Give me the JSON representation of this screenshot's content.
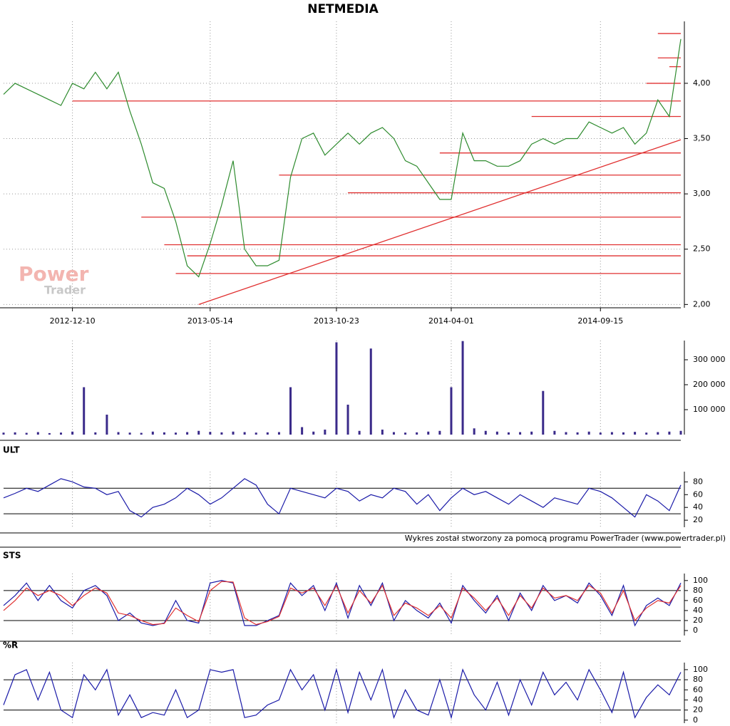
{
  "chart_data": [
    {
      "type": "line",
      "title": "NETMEDIA",
      "categories": [
        null,
        null,
        null,
        null,
        null,
        null,
        "2012-12-10",
        null,
        null,
        null,
        null,
        null,
        null,
        null,
        null,
        null,
        null,
        null,
        "2013-05-14",
        null,
        null,
        null,
        null,
        null,
        null,
        null,
        null,
        null,
        null,
        "2013-10-23",
        null,
        null,
        null,
        null,
        null,
        null,
        null,
        null,
        null,
        "2014-04-01",
        null,
        null,
        null,
        null,
        null,
        null,
        null,
        null,
        null,
        null,
        null,
        null,
        "2014-09-15",
        null,
        null,
        null,
        null,
        null,
        null,
        null
      ],
      "series": [
        {
          "color": "#2e8b2e",
          "values": [
            3.9,
            4.0,
            3.95,
            3.9,
            3.85,
            3.8,
            4.0,
            3.95,
            4.1,
            3.95,
            4.1,
            3.75,
            3.45,
            3.1,
            3.05,
            2.75,
            2.35,
            2.25,
            2.55,
            2.9,
            3.3,
            2.5,
            2.35,
            2.35,
            2.4,
            3.15,
            3.5,
            3.55,
            3.35,
            3.45,
            3.55,
            3.45,
            3.55,
            3.6,
            3.5,
            3.3,
            3.25,
            3.1,
            2.95,
            2.95,
            3.55,
            3.3,
            3.3,
            3.25,
            3.25,
            3.3,
            3.45,
            3.5,
            3.45,
            3.5,
            3.5,
            3.65,
            3.6,
            3.55,
            3.6,
            3.45,
            3.55,
            3.85,
            3.7,
            4.4
          ]
        }
      ],
      "ylim": [
        1.97,
        4.56
      ],
      "yticks": [
        {
          "value": 2,
          "label": "2,00"
        },
        {
          "value": 2.5,
          "label": "2,50"
        },
        {
          "value": 3,
          "label": "3,00"
        },
        {
          "value": 3.5,
          "label": "3,50"
        },
        {
          "value": 4,
          "label": "4,00"
        }
      ],
      "grid": true,
      "level_color": "#e03030",
      "hlines": [
        {
          "start": 6,
          "value": 3.84
        },
        {
          "start": 46,
          "value": 3.7
        },
        {
          "start": 38,
          "value": 3.37
        },
        {
          "start": 24,
          "value": 3.17
        },
        {
          "start": 30,
          "value": 3.01
        },
        {
          "start": 12,
          "value": 2.79
        },
        {
          "start": 14,
          "value": 2.54
        },
        {
          "start": 16,
          "value": 2.44
        },
        {
          "start": 15,
          "value": 2.28
        },
        {
          "start": 56,
          "value": 4.0
        },
        {
          "start": 58,
          "value": 4.15
        },
        {
          "start": 57,
          "value": 4.23
        },
        {
          "start": 57,
          "value": 4.45
        }
      ],
      "trendline": {
        "from": {
          "index": 17,
          "value": 2.0
        },
        "to": {
          "index": 59,
          "value": 3.49
        }
      },
      "watermark": [
        "Power",
        "Trader"
      ]
    },
    {
      "type": "bar",
      "color": "#3a2a8a",
      "values": [
        8000,
        9000,
        7000,
        10000,
        6000,
        8000,
        12000,
        190000,
        9000,
        80000,
        10000,
        8000,
        7000,
        12000,
        9000,
        8000,
        10000,
        15000,
        11000,
        9000,
        12000,
        10000,
        8000,
        9000,
        10000,
        190000,
        30000,
        12000,
        20000,
        370000,
        120000,
        15000,
        345000,
        20000,
        10000,
        8000,
        9000,
        12000,
        15000,
        190000,
        375000,
        25000,
        15000,
        12000,
        9000,
        10000,
        12000,
        175000,
        15000,
        10000,
        9000,
        12000,
        8000,
        10000,
        9000,
        11000,
        8000,
        10000,
        12000,
        15000
      ],
      "ylim": [
        0,
        377000
      ],
      "yticks": [
        {
          "value": 100000,
          "label": "100 000"
        },
        {
          "value": 200000,
          "label": "200 000"
        },
        {
          "value": 300000,
          "label": "300 000"
        }
      ]
    },
    {
      "type": "line",
      "title": "ULT",
      "series": [
        {
          "color": "#1a1aa8",
          "values": [
            55,
            62,
            70,
            65,
            75,
            85,
            80,
            72,
            70,
            60,
            65,
            35,
            25,
            40,
            45,
            55,
            70,
            60,
            45,
            55,
            70,
            85,
            75,
            45,
            30,
            70,
            65,
            60,
            55,
            70,
            65,
            50,
            60,
            55,
            70,
            65,
            45,
            60,
            35,
            55,
            70,
            60,
            65,
            55,
            45,
            60,
            50,
            40,
            55,
            50,
            45,
            70,
            65,
            55,
            40,
            25,
            60,
            50,
            35,
            75
          ]
        }
      ],
      "ylim": [
        9,
        96
      ],
      "yticks": [
        20,
        40,
        60,
        80
      ],
      "levels": [
        30,
        70
      ]
    },
    {
      "type": "line",
      "title": "STS",
      "series": [
        {
          "color": "#1a1aa8",
          "values": [
            50,
            70,
            95,
            60,
            90,
            60,
            45,
            80,
            90,
            70,
            20,
            35,
            15,
            10,
            15,
            60,
            20,
            15,
            95,
            100,
            95,
            10,
            10,
            20,
            30,
            95,
            70,
            90,
            40,
            95,
            25,
            90,
            50,
            95,
            20,
            60,
            40,
            25,
            55,
            15,
            90,
            60,
            35,
            70,
            20,
            75,
            40,
            90,
            60,
            70,
            55,
            95,
            70,
            30,
            90,
            10,
            50,
            65,
            50,
            95
          ]
        },
        {
          "color": "#e03030",
          "values": [
            40,
            60,
            85,
            70,
            80,
            70,
            50,
            70,
            85,
            75,
            35,
            30,
            20,
            12,
            14,
            45,
            30,
            18,
            80,
            98,
            97,
            25,
            12,
            18,
            28,
            85,
            75,
            85,
            50,
            90,
            35,
            80,
            55,
            90,
            30,
            55,
            45,
            30,
            50,
            25,
            85,
            65,
            40,
            65,
            30,
            70,
            45,
            85,
            65,
            70,
            60,
            90,
            75,
            35,
            80,
            20,
            45,
            60,
            55,
            90
          ]
        }
      ],
      "ylim": [
        -10,
        114
      ],
      "yticks": [
        0,
        20,
        40,
        60,
        80,
        100
      ],
      "levels": [
        20,
        80
      ]
    },
    {
      "type": "line",
      "title": "%R",
      "series": [
        {
          "color": "#1a1aa8",
          "values": [
            30,
            90,
            100,
            40,
            95,
            20,
            5,
            90,
            60,
            100,
            10,
            50,
            5,
            15,
            10,
            60,
            5,
            20,
            100,
            95,
            100,
            5,
            10,
            30,
            40,
            100,
            60,
            90,
            20,
            100,
            15,
            95,
            40,
            100,
            5,
            60,
            20,
            10,
            80,
            5,
            100,
            50,
            20,
            75,
            10,
            80,
            30,
            95,
            50,
            75,
            40,
            100,
            60,
            15,
            95,
            5,
            45,
            70,
            50,
            95
          ]
        }
      ],
      "ylim": [
        -6,
        114
      ],
      "yticks": [
        0,
        20,
        40,
        60,
        80,
        100
      ],
      "levels": [
        20,
        80
      ]
    }
  ],
  "footer": "Wykres został stworzony za pomocą programu PowerTrader (www.powertrader.pl)"
}
